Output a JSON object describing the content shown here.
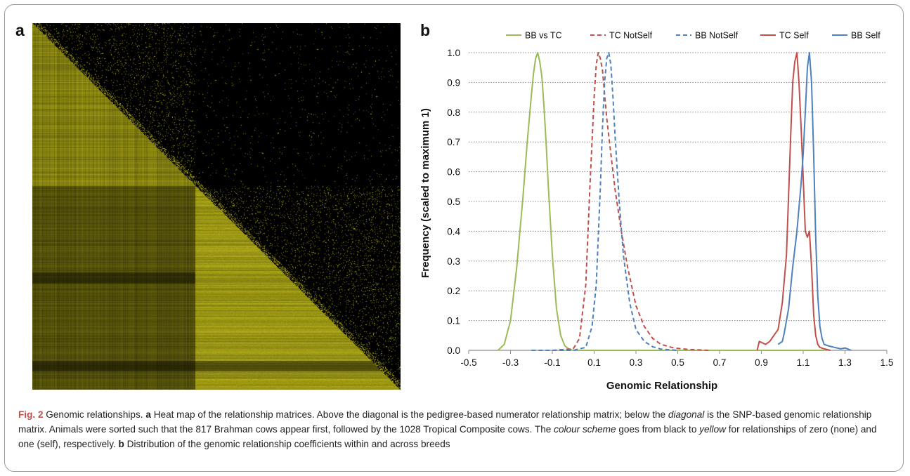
{
  "figure": {
    "panel_a_label": "a",
    "panel_b_label": "b",
    "caption": {
      "fig_label": "Fig. 2",
      "title": "Genomic relationships.",
      "a_label": "a",
      "a_text_1": "Heat map of the relationship matrices. Above the diagonal is the pedigree-based numerator relationship matrix; below the ",
      "diagonal_word": "diagonal",
      "a_text_2": " is the SNP-based genomic relationship matrix. Animals were sorted such that the 817 Brahman cows appear first, followed by the 1028 Tropical Composite cows. The ",
      "colour_scheme_word": "colour scheme",
      "a_text_3": " goes from black to ",
      "yellow_word": "yellow",
      "a_text_4": " for relationships of zero (none) and one (self), respectively. ",
      "b_label": "b",
      "b_text": " Distribution of the genomic relationship coefficients within and across breeds"
    },
    "heatmap_colors": {
      "low": "#000000",
      "high": "#c8c21a"
    }
  },
  "chart_data": {
    "type": "line",
    "xlabel": "Genomic Relationship",
    "ylabel": "Frequency (scaled to maximum 1)",
    "xlim": [
      -0.5,
      1.5
    ],
    "ylim": [
      0,
      1.0
    ],
    "xticks": [
      "-0.5",
      "-0.3",
      "-0.1",
      "0.1",
      "0.3",
      "0.5",
      "0.7",
      "0.9",
      "1.1",
      "1.3",
      "1.5"
    ],
    "yticks": [
      "0.0",
      "0.1",
      "0.2",
      "0.3",
      "0.4",
      "0.5",
      "0.6",
      "0.7",
      "0.8",
      "0.9",
      "1.0"
    ],
    "grid": "horizontal dotted",
    "legend_position": "top",
    "series": [
      {
        "name": "BB vs TC",
        "color": "#9bbb59",
        "dash": "solid",
        "x": [
          -0.36,
          -0.33,
          -0.3,
          -0.27,
          -0.24,
          -0.22,
          -0.2,
          -0.19,
          -0.18,
          -0.17,
          -0.16,
          -0.15,
          -0.14,
          -0.13,
          -0.12,
          -0.1,
          -0.08,
          -0.06,
          -0.04,
          -0.02,
          0.0,
          0.1,
          0.5,
          0.8,
          1.2
        ],
        "y": [
          0.0,
          0.02,
          0.1,
          0.28,
          0.52,
          0.7,
          0.86,
          0.93,
          0.98,
          1.0,
          0.97,
          0.92,
          0.82,
          0.7,
          0.56,
          0.32,
          0.14,
          0.05,
          0.015,
          0.004,
          0.0,
          0.0,
          0.0,
          0.0,
          0.0
        ]
      },
      {
        "name": "TC NotSelf",
        "color": "#c0504d",
        "dash": "dashed",
        "x": [
          -0.1,
          0.0,
          0.03,
          0.06,
          0.08,
          0.1,
          0.11,
          0.12,
          0.13,
          0.14,
          0.15,
          0.16,
          0.18,
          0.2,
          0.23,
          0.26,
          0.3,
          0.34,
          0.38,
          0.42,
          0.48,
          0.55,
          0.65
        ],
        "y": [
          0.0,
          0.005,
          0.04,
          0.22,
          0.55,
          0.85,
          0.96,
          1.0,
          0.98,
          0.94,
          0.86,
          0.78,
          0.66,
          0.54,
          0.4,
          0.28,
          0.15,
          0.08,
          0.04,
          0.02,
          0.008,
          0.003,
          0.0
        ]
      },
      {
        "name": "BB NotSelf",
        "color": "#4f81bd",
        "dash": "dashed",
        "x": [
          -0.2,
          0.0,
          0.06,
          0.09,
          0.11,
          0.13,
          0.14,
          0.15,
          0.16,
          0.17,
          0.18,
          0.19,
          0.2,
          0.22,
          0.24,
          0.27,
          0.3,
          0.34,
          0.38,
          0.42,
          0.5
        ],
        "y": [
          0.0,
          0.0,
          0.01,
          0.08,
          0.22,
          0.55,
          0.75,
          0.9,
          0.98,
          1.0,
          0.96,
          0.85,
          0.72,
          0.5,
          0.32,
          0.16,
          0.07,
          0.03,
          0.012,
          0.004,
          0.0
        ]
      },
      {
        "name": "TC Self",
        "color": "#c0504d",
        "dash": "solid",
        "x": [
          0.88,
          0.89,
          0.92,
          0.94,
          0.96,
          0.98,
          1.0,
          1.02,
          1.03,
          1.04,
          1.05,
          1.06,
          1.07,
          1.08,
          1.09,
          1.1,
          1.11,
          1.12,
          1.13,
          1.14,
          1.15,
          1.16,
          1.17,
          1.18,
          1.2,
          1.23
        ],
        "y": [
          0.0,
          0.03,
          0.02,
          0.03,
          0.05,
          0.07,
          0.16,
          0.32,
          0.52,
          0.72,
          0.9,
          0.97,
          1.0,
          0.9,
          0.75,
          0.58,
          0.4,
          0.38,
          0.4,
          0.28,
          0.12,
          0.05,
          0.02,
          0.01,
          0.005,
          0.0
        ]
      },
      {
        "name": "BB Self",
        "color": "#4f81bd",
        "dash": "solid",
        "x": [
          0.98,
          1.0,
          1.01,
          1.03,
          1.05,
          1.07,
          1.09,
          1.1,
          1.11,
          1.12,
          1.13,
          1.14,
          1.15,
          1.16,
          1.17,
          1.18,
          1.19,
          1.2,
          1.22,
          1.25,
          1.28,
          1.3,
          1.33
        ],
        "y": [
          0.02,
          0.03,
          0.06,
          0.14,
          0.28,
          0.4,
          0.56,
          0.66,
          0.8,
          0.95,
          1.0,
          0.9,
          0.66,
          0.38,
          0.18,
          0.08,
          0.04,
          0.02,
          0.015,
          0.01,
          0.005,
          0.008,
          0.0
        ]
      }
    ]
  }
}
